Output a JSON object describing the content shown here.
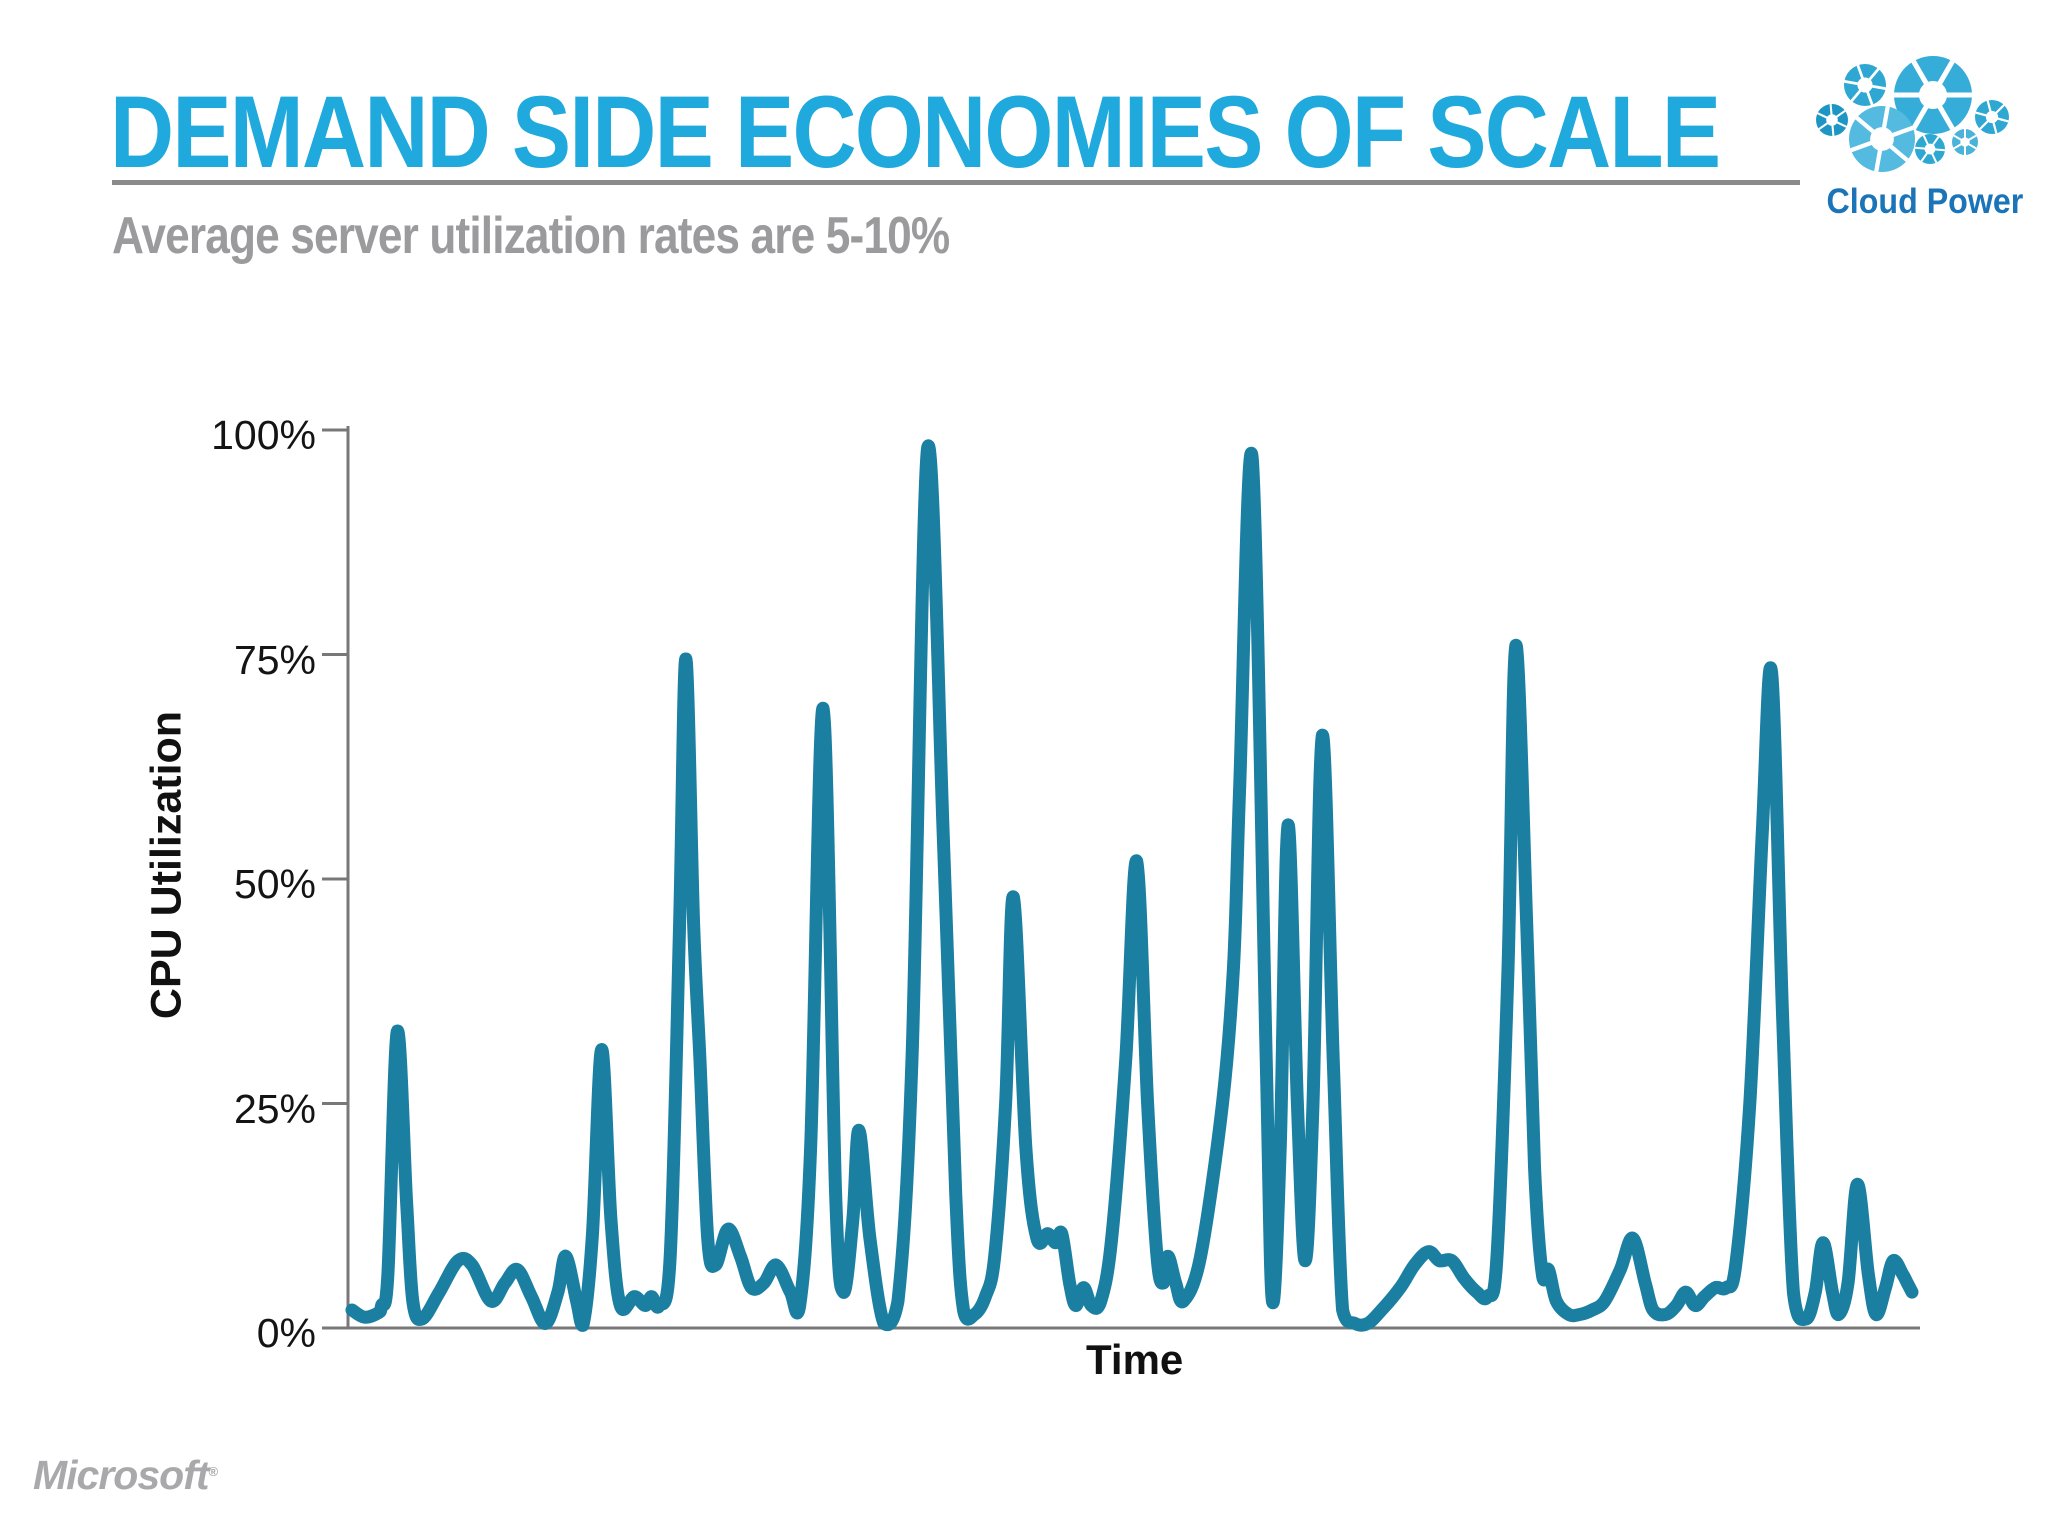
{
  "slide": {
    "title": "DEMAND SIDE ECONOMIES OF SCALE",
    "subtitle": "Average server utilization rates are 5-10%",
    "title_color": "#1FA9DC",
    "subtitle_color": "#9B9B9D",
    "rule_color": "#8A8A8A",
    "background_color": "#FFFFFF"
  },
  "logo": {
    "label": "Cloud Power",
    "text_color": "#1B74B8",
    "wheel_colors": [
      "#2EA7D3",
      "#36ACD8",
      "#1E96C3",
      "#55BADF",
      "#2EA7D3",
      "#4AB3DA",
      "#2EA7D3"
    ]
  },
  "footer": {
    "brand": "Microsoft",
    "reg_mark": "®",
    "color": "#A9A9AC"
  },
  "chart_data": {
    "type": "line",
    "title": "",
    "xlabel": "Time",
    "ylabel": "CPU Utilization",
    "xlim": [
      0,
      100
    ],
    "ylim": [
      0,
      100
    ],
    "x_note": "time axis is unlabeled (arbitrary units 0-100)",
    "grid": false,
    "legend": false,
    "line_color": "#1B7FA1",
    "axis_color": "#787878",
    "yticks": [
      {
        "value": 0,
        "label": "0%"
      },
      {
        "value": 25,
        "label": "25%"
      },
      {
        "value": 50,
        "label": "50%"
      },
      {
        "value": 75,
        "label": "75%"
      },
      {
        "value": 100,
        "label": "100%"
      }
    ],
    "series": [
      {
        "name": "CPU Utilization",
        "points": [
          [
            0,
            2
          ],
          [
            0.8,
            1.2
          ],
          [
            1.7,
            1.7
          ],
          [
            1.9,
            2.5
          ],
          [
            2.3,
            6
          ],
          [
            2.9,
            33
          ],
          [
            3.5,
            14
          ],
          [
            3.9,
            3
          ],
          [
            4.5,
            1
          ],
          [
            5.6,
            4
          ],
          [
            6.8,
            7.5
          ],
          [
            7.7,
            7
          ],
          [
            8.9,
            3
          ],
          [
            9.8,
            5
          ],
          [
            10.6,
            6.5
          ],
          [
            11.5,
            3.5
          ],
          [
            12.4,
            0.5
          ],
          [
            13.2,
            4
          ],
          [
            13.7,
            8
          ],
          [
            14.4,
            3
          ],
          [
            14.8,
            0.3
          ],
          [
            15.4,
            10
          ],
          [
            16,
            31
          ],
          [
            16.6,
            12
          ],
          [
            17.2,
            2.5
          ],
          [
            18.1,
            3.5
          ],
          [
            18.8,
            2.5
          ],
          [
            19.2,
            3.5
          ],
          [
            19.7,
            2.5
          ],
          [
            20.4,
            8
          ],
          [
            21,
            45
          ],
          [
            21.4,
            74.5
          ],
          [
            21.9,
            45
          ],
          [
            22.3,
            30
          ],
          [
            22.8,
            10
          ],
          [
            23.3,
            7
          ],
          [
            24.1,
            11
          ],
          [
            24.9,
            8
          ],
          [
            25.6,
            4.5
          ],
          [
            26.4,
            5
          ],
          [
            27.2,
            7
          ],
          [
            28.1,
            4
          ],
          [
            28.7,
            2.5
          ],
          [
            29.4,
            20
          ],
          [
            30.2,
            69
          ],
          [
            31,
            15
          ],
          [
            31.5,
            4
          ],
          [
            32.1,
            12
          ],
          [
            32.5,
            22
          ],
          [
            33.2,
            10
          ],
          [
            34.1,
            0.5
          ],
          [
            35,
            3
          ],
          [
            35.9,
            30
          ],
          [
            36.9,
            98
          ],
          [
            37.9,
            55
          ],
          [
            38.7,
            15
          ],
          [
            39.2,
            2
          ],
          [
            39.9,
            1.5
          ],
          [
            40.6,
            3.5
          ],
          [
            41.2,
            8
          ],
          [
            41.9,
            25
          ],
          [
            42.4,
            48
          ],
          [
            43.2,
            20
          ],
          [
            43.9,
            10
          ],
          [
            44.6,
            10.5
          ],
          [
            45.1,
            9.5
          ],
          [
            45.5,
            10.5
          ],
          [
            46,
            5
          ],
          [
            46.4,
            2.5
          ],
          [
            46.9,
            4.5
          ],
          [
            47.4,
            2.5
          ],
          [
            48,
            3
          ],
          [
            48.7,
            10
          ],
          [
            49.6,
            30
          ],
          [
            50.3,
            52
          ],
          [
            51,
            25
          ],
          [
            51.6,
            8
          ],
          [
            52,
            5
          ],
          [
            52.3,
            8
          ],
          [
            52.8,
            5
          ],
          [
            53.3,
            3
          ],
          [
            54.4,
            8
          ],
          [
            55.8,
            25
          ],
          [
            56.5,
            40
          ],
          [
            56.9,
            60
          ],
          [
            57.7,
            97
          ],
          [
            58.6,
            30
          ],
          [
            59,
            3
          ],
          [
            59.5,
            20
          ],
          [
            60,
            56
          ],
          [
            60.6,
            25
          ],
          [
            61.1,
            7.5
          ],
          [
            61.6,
            25
          ],
          [
            62.2,
            66
          ],
          [
            62.9,
            30
          ],
          [
            63.5,
            2
          ],
          [
            64.3,
            0.5
          ],
          [
            65.1,
            0.5
          ],
          [
            66,
            2
          ],
          [
            67.2,
            4.5
          ],
          [
            68.1,
            7
          ],
          [
            69,
            8.5
          ],
          [
            69.7,
            7.5
          ],
          [
            70.5,
            7.5
          ],
          [
            71.3,
            5.5
          ],
          [
            72.1,
            4
          ],
          [
            72.8,
            3.5
          ],
          [
            73.4,
            8
          ],
          [
            74.1,
            40
          ],
          [
            74.6,
            76
          ],
          [
            75.3,
            45
          ],
          [
            75.8,
            18
          ],
          [
            76.3,
            6
          ],
          [
            76.7,
            6.5
          ],
          [
            77.2,
            3
          ],
          [
            78,
            1.5
          ],
          [
            78.7,
            1.5
          ],
          [
            79.5,
            2
          ],
          [
            80.3,
            3
          ],
          [
            81.3,
            6.5
          ],
          [
            82.1,
            10
          ],
          [
            82.9,
            5
          ],
          [
            83.4,
            2
          ],
          [
            84.2,
            1.5
          ],
          [
            84.9,
            2.5
          ],
          [
            85.5,
            4
          ],
          [
            86.1,
            2.5
          ],
          [
            86.7,
            3.5
          ],
          [
            87.4,
            4.5
          ],
          [
            88.1,
            4.5
          ],
          [
            88.7,
            7
          ],
          [
            89.6,
            25
          ],
          [
            90.4,
            55
          ],
          [
            91,
            73
          ],
          [
            91.7,
            35
          ],
          [
            92.4,
            4
          ],
          [
            93.2,
            1
          ],
          [
            93.8,
            4
          ],
          [
            94.3,
            9.5
          ],
          [
            94.9,
            4
          ],
          [
            95.3,
            1.5
          ],
          [
            95.9,
            5
          ],
          [
            96.5,
            16
          ],
          [
            97.2,
            6
          ],
          [
            97.7,
            1.5
          ],
          [
            98.3,
            4.5
          ],
          [
            98.8,
            7.5
          ],
          [
            99.4,
            6
          ],
          [
            99.7,
            5
          ],
          [
            100,
            4
          ]
        ]
      }
    ]
  }
}
